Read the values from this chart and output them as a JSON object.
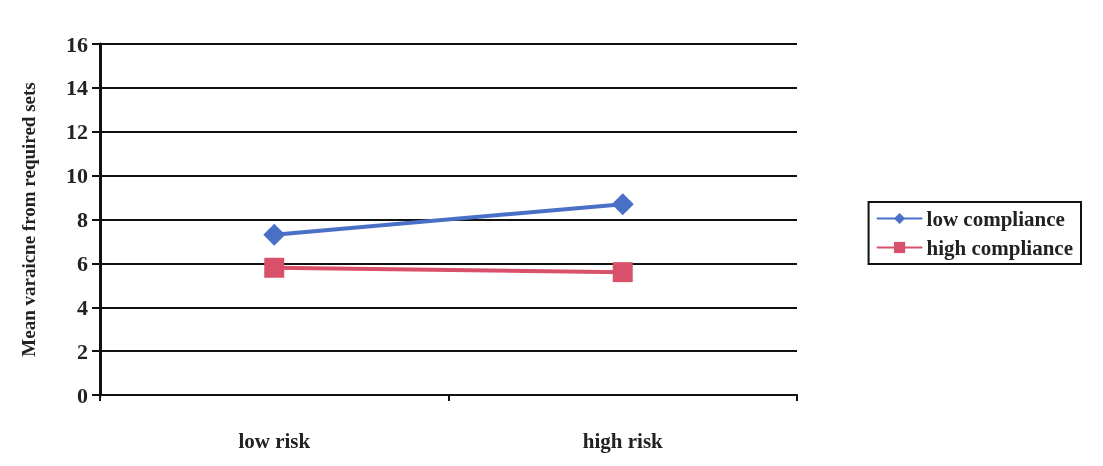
{
  "chart_data": {
    "type": "line",
    "ylabel": "Mean varaicne from required sets",
    "categories": [
      "low risk",
      "high risk"
    ],
    "series": [
      {
        "name": "low compliance",
        "color": "#4a6fc7",
        "marker": "diamond",
        "values": [
          7.3,
          8.7
        ]
      },
      {
        "name": "high compliance",
        "color": "#d9506a",
        "marker": "square",
        "values": [
          5.8,
          5.6
        ]
      }
    ],
    "ylim": [
      0,
      16
    ],
    "yticks": [
      0,
      2,
      4,
      6,
      8,
      10,
      12,
      14,
      16
    ],
    "grid": "y",
    "legend": "right",
    "line_style": "solid"
  }
}
